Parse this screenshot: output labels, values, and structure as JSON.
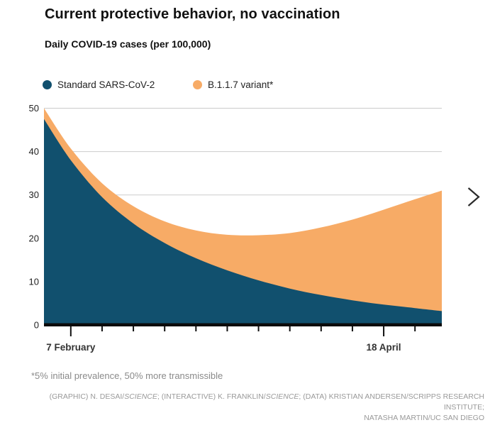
{
  "header": {
    "title": "Current protective behavior, no vaccination",
    "subtitle": "Daily COVID-19 cases (per 100,000)"
  },
  "legend": [
    {
      "label": "Standard SARS-CoV-2",
      "color": "#11506e"
    },
    {
      "label": "B.1.1.7 variant*",
      "color": "#f7ab66"
    }
  ],
  "chart_data": {
    "type": "area",
    "stacked": true,
    "title": "Current protective behavior, no vaccination",
    "ylabel": "Daily COVID-19 cases (per 100,000)",
    "xlabel": "",
    "ylim": [
      0,
      50
    ],
    "y_ticks": [
      0,
      10,
      20,
      30,
      40,
      50
    ],
    "grid": "horizontal",
    "legend_position": "top",
    "x_unit": "days (x=0 is 1 February)",
    "x": [
      0,
      6,
      13,
      20,
      27,
      34,
      41,
      48,
      55,
      62,
      69,
      76,
      83,
      89
    ],
    "series": [
      {
        "name": "Standard SARS-CoV-2",
        "color": "#11506e",
        "values": [
          47.5,
          38.0,
          29.5,
          23.4,
          18.9,
          15.4,
          12.6,
          10.3,
          8.4,
          6.9,
          5.7,
          4.7,
          3.9,
          3.2
        ]
      },
      {
        "name": "B.1.1.7 variant*",
        "color": "#f7ab66",
        "values": [
          2.5,
          2.7,
          3.2,
          4.0,
          5.0,
          6.4,
          8.2,
          10.4,
          12.8,
          15.6,
          18.6,
          21.9,
          25.1,
          27.8
        ]
      }
    ],
    "stacked_totals": [
      50.0,
      40.7,
      32.7,
      27.4,
      23.9,
      21.8,
      20.8,
      20.7,
      21.2,
      22.5,
      24.3,
      26.6,
      29.0,
      31.0
    ],
    "x_tick_days": [
      6,
      13,
      20,
      27,
      34,
      41,
      48,
      55,
      62,
      69,
      76,
      83
    ],
    "x_labeled_ticks": [
      {
        "day": 6,
        "label": "7 February"
      },
      {
        "day": 76,
        "label": "18 April"
      }
    ]
  },
  "footnote": "*5% initial prevalence, 50% more transmissible",
  "credits": {
    "line1": [
      {
        "text": "(GRAPHIC) N. DESAI/",
        "italic": false
      },
      {
        "text": "SCIENCE",
        "italic": true
      },
      {
        "text": "; (INTERACTIVE) K. FRANKLIN/",
        "italic": false
      },
      {
        "text": "SCIENCE",
        "italic": true
      },
      {
        "text": "; (DATA) KRISTIAN ANDERSEN/SCRIPPS RESEARCH INSTITUTE;",
        "italic": false
      }
    ],
    "line2": "NATASHA MARTIN/UC SAN DIEGO"
  },
  "colors": {
    "standard": "#11506e",
    "variant": "#f7ab66",
    "grid": "#cbcbcb",
    "axis": "#0b0b0b",
    "text": "#222222",
    "muted": "#8a8a8a"
  }
}
